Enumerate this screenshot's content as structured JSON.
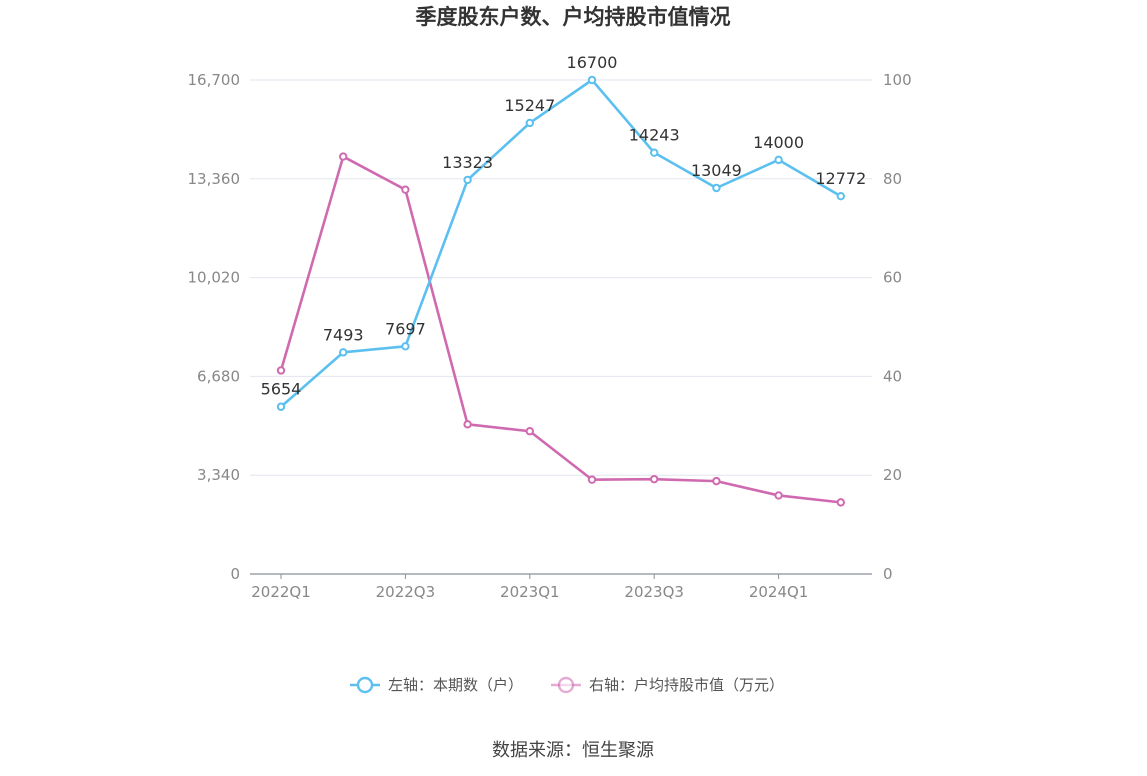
{
  "chart_data": {
    "type": "line",
    "title": "季度股东户数、户均持股市值情况",
    "x": [
      "2022Q1",
      "2022Q2",
      "2022Q3",
      "2022Q4",
      "2023Q1",
      "2023Q2",
      "2023Q3",
      "2023Q4",
      "2024Q1",
      "2024Q2"
    ],
    "x_tick_labels": [
      "2022Q1",
      "2022Q3",
      "2023Q1",
      "2023Q3",
      "2024Q1"
    ],
    "y_left": {
      "ticks": [
        "0",
        "3,340",
        "6,680",
        "10,020",
        "13,360",
        "16,700"
      ],
      "range": [
        0,
        16700
      ]
    },
    "y_right": {
      "ticks": [
        "0",
        "20",
        "40",
        "60",
        "80",
        "100"
      ],
      "range": [
        0,
        100
      ]
    },
    "series": [
      {
        "name": "左轴：本期数（户）",
        "axis": "left",
        "color": "#5bc0f0",
        "values": [
          5654,
          7493,
          7697,
          13323,
          15247,
          16700,
          14243,
          13049,
          14000,
          12772
        ],
        "labels": [
          "5654",
          "7493",
          "7697",
          "13323",
          "15247",
          "16700",
          "14243",
          "13049",
          "14000",
          "12772"
        ]
      },
      {
        "name": "右轴：户均持股市值（万元）",
        "axis": "right",
        "color": "#d06ab0",
        "values": [
          41.2,
          84.5,
          77.8,
          30.3,
          28.9,
          19.1,
          19.2,
          18.8,
          15.9,
          14.5
        ]
      }
    ],
    "grid": true,
    "legend_position": "bottom"
  },
  "source_text": "数据来源：恒生聚源"
}
